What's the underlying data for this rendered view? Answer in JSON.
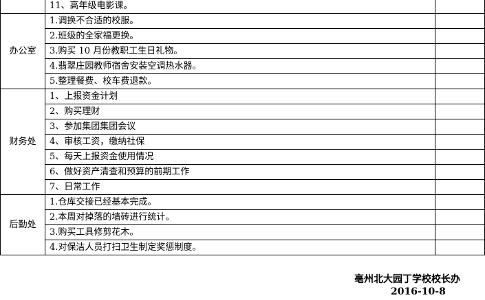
{
  "top_row": {
    "item": "11、高年级电影课。"
  },
  "sections": [
    {
      "dept": "办公室",
      "items": [
        "1.调换不合适的校服。",
        "2.班级的全家福更换。",
        "3.购买 10 月份教职工生日礼物。",
        "4.翡翠庄园教师宿舍安装空调热水器。",
        "5.整理餐费、校车费退款。"
      ]
    },
    {
      "dept": "财务处",
      "items": [
        "1、上报资金计划",
        "2、购买理财",
        "3、参加集团集团会议",
        "4、审核工资，缴纳社保",
        "5、每天上报资金使用情况",
        "6、做好资产清查和预算的前期工作",
        "7、日常工作"
      ]
    },
    {
      "dept": "后勤处",
      "items": [
        "1.仓库交接已经基本完成。",
        "2.本周对掉落的墙砖进行统计。",
        "3.购买工具修剪花木。",
        "4.对保洁人员打扫卫生制定奖惩制度。"
      ]
    }
  ],
  "footer": {
    "org": "亳州北大园丁学校校长办",
    "date": "2016-10-8"
  }
}
